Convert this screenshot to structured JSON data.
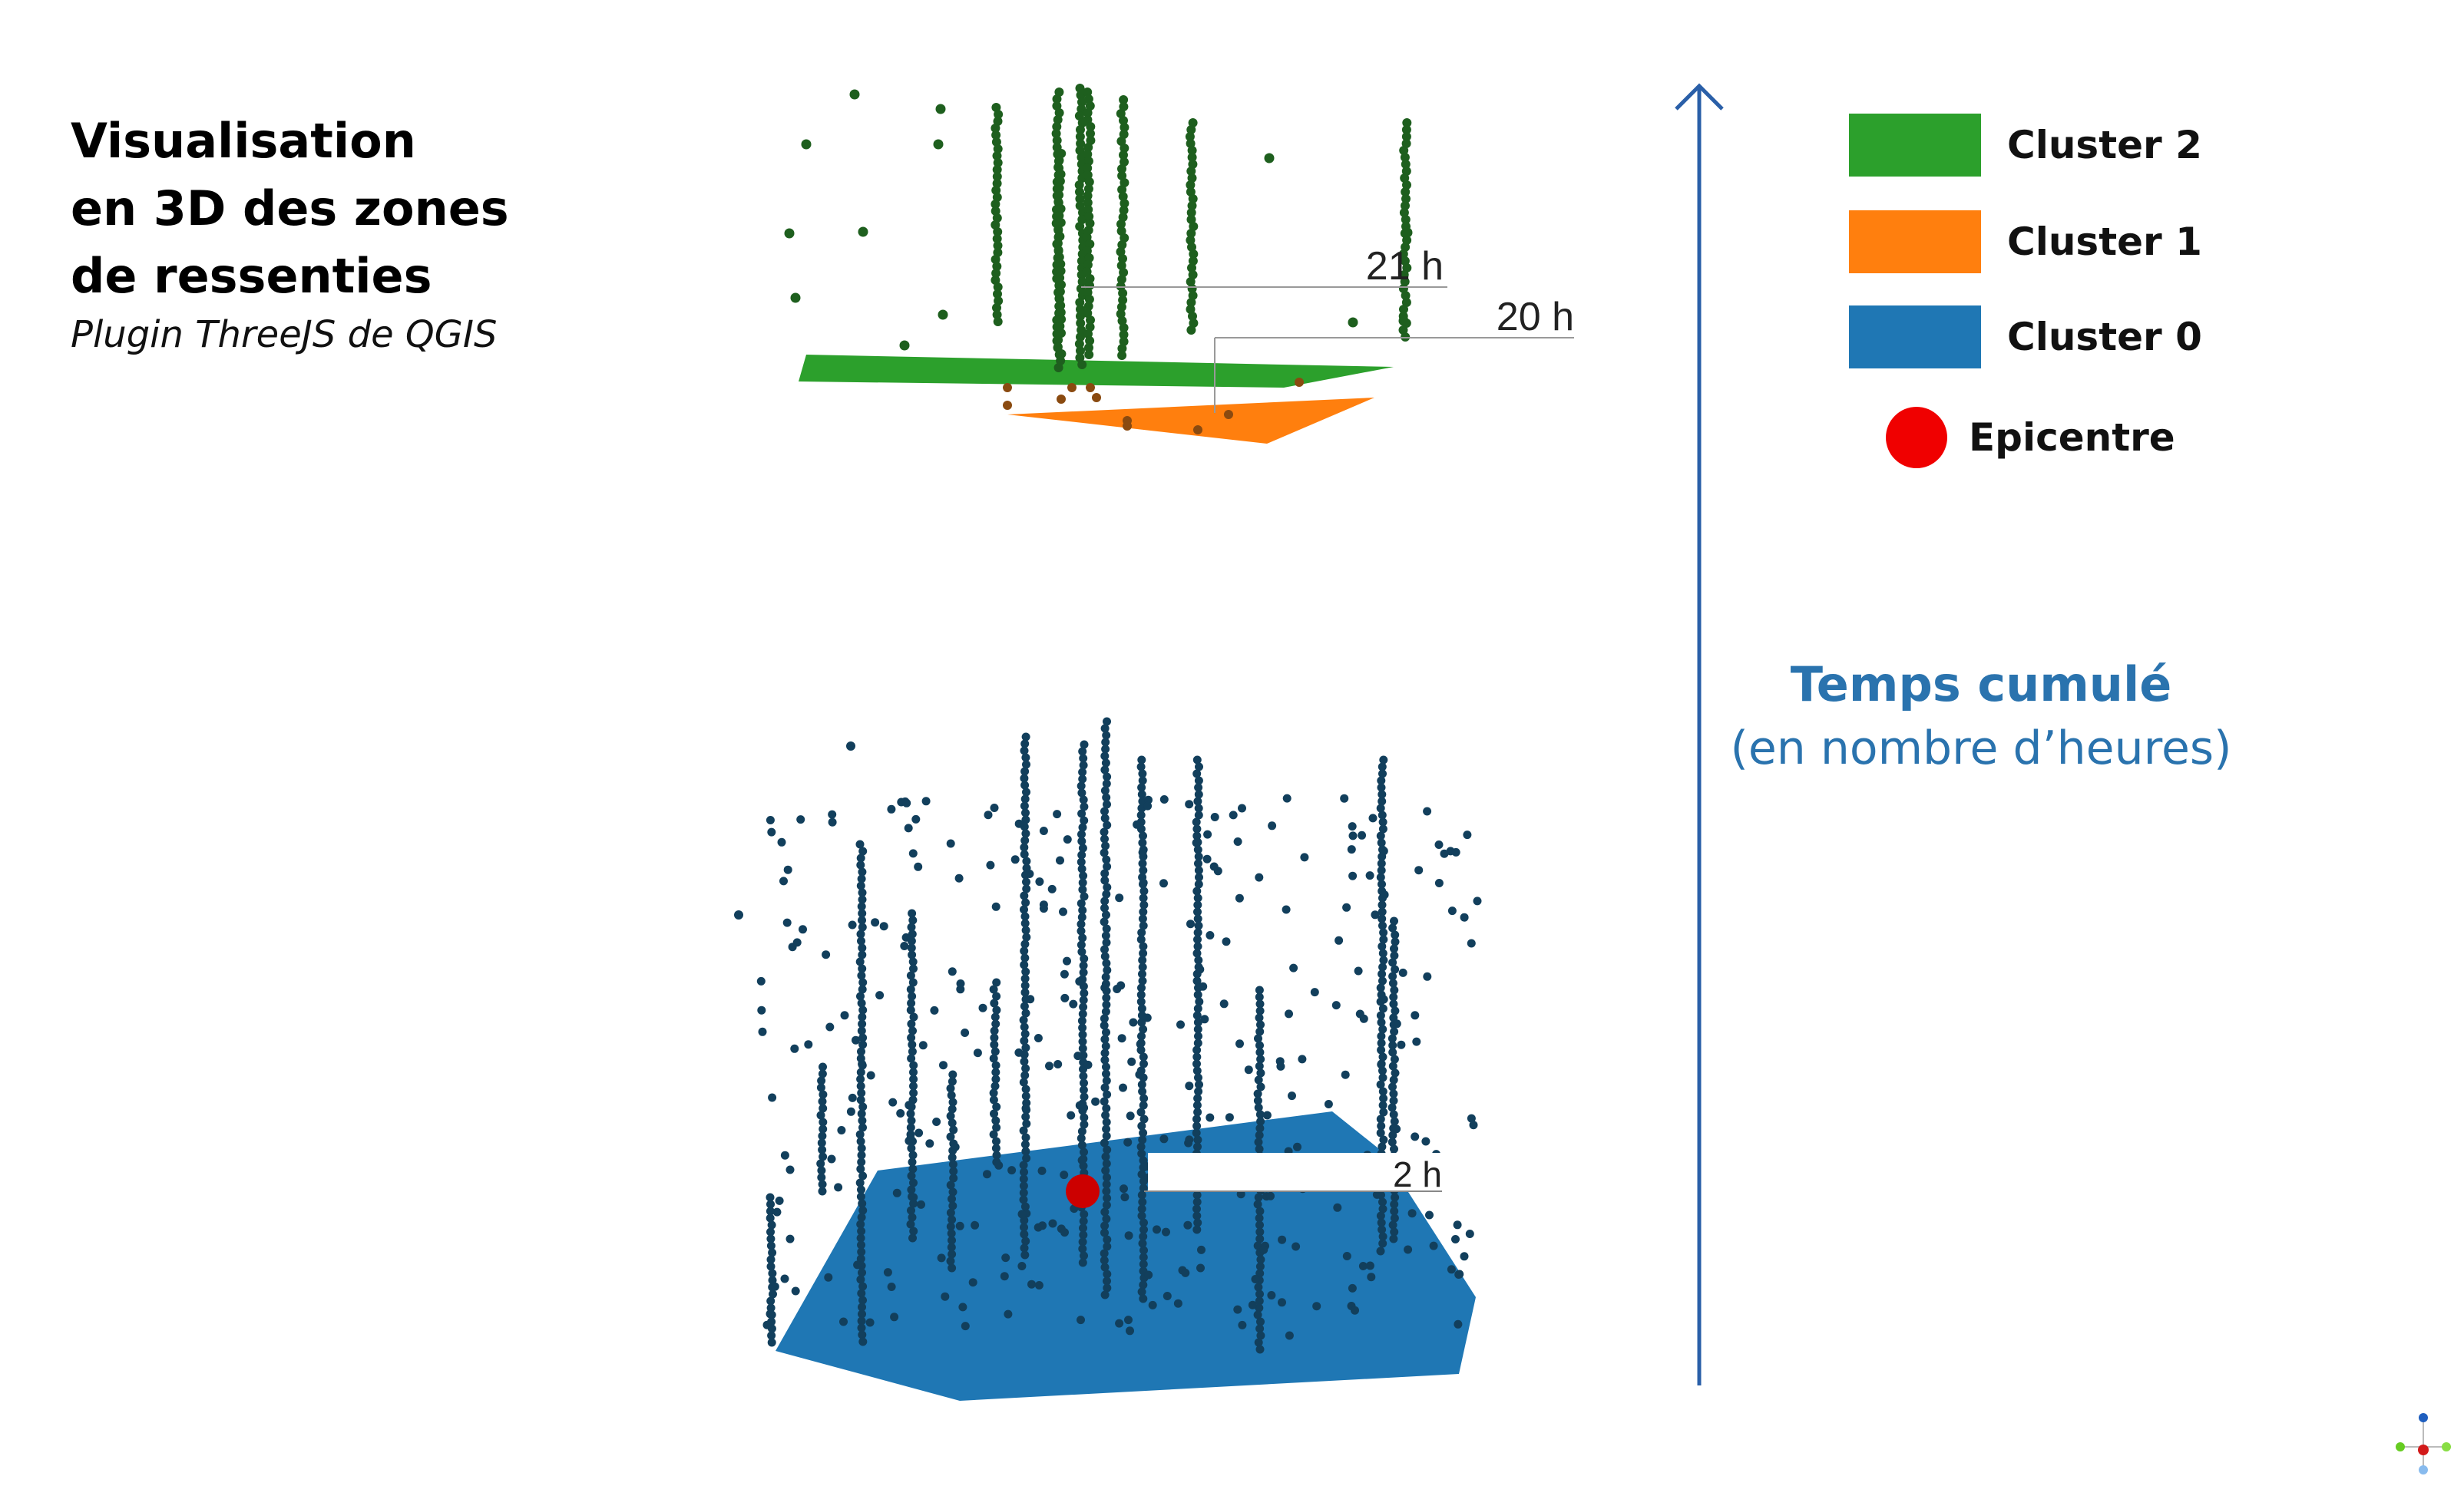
{
  "title": {
    "lines": [
      "Visualisation",
      "en 3D des zones",
      "de ressenties"
    ],
    "subtitle": "Plugin ThreeJS de QGIS"
  },
  "legend": [
    {
      "label": "Cluster 2",
      "color": "#2ca02c",
      "shape": "rectangle"
    },
    {
      "label": "Cluster 1",
      "color": "#ff7f0e",
      "shape": "rectangle"
    },
    {
      "label": "Cluster 0",
      "color": "#1f77b4",
      "shape": "rectangle"
    },
    {
      "label": "Epicentre",
      "color": "#f00000",
      "shape": "circle"
    }
  ],
  "axis": {
    "title": "Temps cumulé",
    "subtitle": "(en nombre d’heures)",
    "color": "#2a5fa8"
  },
  "layers": [
    {
      "cluster": "Cluster 2",
      "label": "21 h",
      "color": "#2ca02c",
      "point_color": "#1e5f1e"
    },
    {
      "cluster": "Cluster 1",
      "label": "20 h",
      "color": "#ff7f0e",
      "point_color": "#8a4a10"
    },
    {
      "cluster": "Cluster 0",
      "label": "2 h",
      "color": "#1f77b4",
      "point_color": "#123f5c"
    }
  ],
  "epicentre": {
    "color": "#cc0000"
  }
}
